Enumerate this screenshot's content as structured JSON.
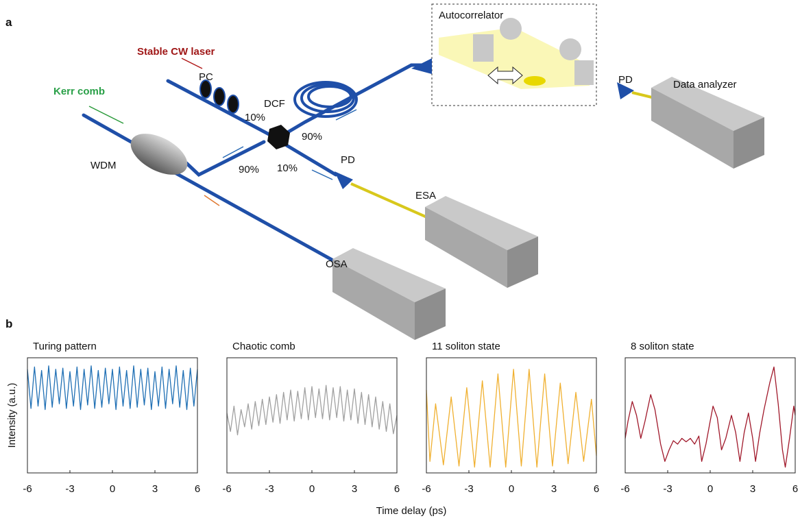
{
  "diagram": {
    "panel_a": "a",
    "panel_b": "b",
    "stable_cw_laser": "Stable CW laser",
    "pc": "PC",
    "kerr_comb": "Kerr comb",
    "dcf": "DCF",
    "coupler_left_top": "10%",
    "coupler_right_top": "90%",
    "wdm": "WDM",
    "coupler_left_bottom": "90%",
    "coupler_right_bottom": "10%",
    "pd_lower": "PD",
    "esa": "ESA",
    "osa": "OSA",
    "autocorrelator": "Autocorrelator",
    "pd_upper": "PD",
    "data_analyzer": "Data analyzer"
  },
  "figure": {
    "xlabel": "Time delay (ps)",
    "ylabel": "Intensity (a.u.)"
  },
  "chart_data": [
    {
      "type": "line",
      "title": "Turing pattern",
      "color": "#1f6fb4",
      "xlim": [
        -6,
        6
      ],
      "xticks": [
        -6,
        -3,
        0,
        3,
        6
      ],
      "ylim": [
        0,
        1
      ],
      "x": [
        -6,
        -5.75,
        -5.5,
        -5.25,
        -5,
        -4.75,
        -4.5,
        -4.25,
        -4,
        -3.75,
        -3.5,
        -3.25,
        -3,
        -2.75,
        -2.5,
        -2.25,
        -2,
        -1.75,
        -1.5,
        -1.25,
        -1,
        -0.75,
        -0.5,
        -0.25,
        0,
        0.25,
        0.5,
        0.75,
        1,
        1.25,
        1.5,
        1.75,
        2,
        2.25,
        2.5,
        2.75,
        3,
        3.25,
        3.5,
        3.75,
        4,
        4.25,
        4.5,
        4.75,
        5,
        5.25,
        5.5,
        5.75,
        6
      ],
      "values": [
        0.9,
        0.56,
        0.92,
        0.58,
        0.89,
        0.55,
        0.93,
        0.57,
        0.9,
        0.6,
        0.91,
        0.56,
        0.88,
        0.58,
        0.92,
        0.55,
        0.9,
        0.59,
        0.93,
        0.56,
        0.89,
        0.57,
        0.91,
        0.6,
        0.9,
        0.55,
        0.92,
        0.58,
        0.89,
        0.56,
        0.93,
        0.57,
        0.9,
        0.59,
        0.91,
        0.55,
        0.88,
        0.58,
        0.92,
        0.56,
        0.9,
        0.6,
        0.93,
        0.57,
        0.89,
        0.55,
        0.91,
        0.58,
        0.9
      ]
    },
    {
      "type": "line",
      "title": "Chaotic comb",
      "color": "#a0a0a0",
      "xlim": [
        -6,
        6
      ],
      "xticks": [
        -6,
        -3,
        0,
        3,
        6
      ],
      "ylim": [
        0,
        1
      ],
      "x": [
        -6,
        -5.75,
        -5.5,
        -5.25,
        -5,
        -4.75,
        -4.5,
        -4.25,
        -4,
        -3.75,
        -3.5,
        -3.25,
        -3,
        -2.75,
        -2.5,
        -2.25,
        -2,
        -1.75,
        -1.5,
        -1.25,
        -1,
        -0.75,
        -0.5,
        -0.25,
        0,
        0.25,
        0.5,
        0.75,
        1,
        1.25,
        1.5,
        1.75,
        2,
        2.25,
        2.5,
        2.75,
        3,
        3.25,
        3.5,
        3.75,
        4,
        4.25,
        4.5,
        4.75,
        5,
        5.25,
        5.5,
        5.75,
        6
      ],
      "values": [
        0.52,
        0.36,
        0.58,
        0.33,
        0.55,
        0.4,
        0.6,
        0.38,
        0.62,
        0.41,
        0.64,
        0.42,
        0.66,
        0.44,
        0.68,
        0.43,
        0.7,
        0.46,
        0.72,
        0.45,
        0.71,
        0.47,
        0.74,
        0.46,
        0.75,
        0.48,
        0.73,
        0.47,
        0.76,
        0.46,
        0.74,
        0.48,
        0.75,
        0.45,
        0.72,
        0.46,
        0.73,
        0.43,
        0.7,
        0.42,
        0.68,
        0.4,
        0.66,
        0.38,
        0.62,
        0.36,
        0.6,
        0.34,
        0.5
      ]
    },
    {
      "type": "line",
      "title": "11 soliton state",
      "color": "#f0b030",
      "xlim": [
        -6,
        6
      ],
      "xticks": [
        -6,
        -3,
        0,
        3,
        6
      ],
      "ylim": [
        0,
        1
      ],
      "x": [
        -6,
        -5.75,
        -5.35,
        -4.8,
        -4.25,
        -3.7,
        -3.15,
        -2.6,
        -2.05,
        -1.5,
        -0.95,
        -0.4,
        0.15,
        0.7,
        1.25,
        1.8,
        2.35,
        2.9,
        3.45,
        4.0,
        4.55,
        5.1,
        5.65,
        6
      ],
      "values": [
        0.72,
        0.1,
        0.6,
        0.07,
        0.66,
        0.06,
        0.74,
        0.05,
        0.8,
        0.05,
        0.86,
        0.05,
        0.9,
        0.06,
        0.9,
        0.05,
        0.86,
        0.06,
        0.78,
        0.08,
        0.7,
        0.1,
        0.64,
        0.15
      ]
    },
    {
      "type": "line",
      "title": "8 soliton state",
      "color": "#a0182a",
      "xlim": [
        -6,
        6
      ],
      "xticks": [
        -6,
        -3,
        0,
        3,
        6
      ],
      "ylim": [
        0,
        1
      ],
      "x": [
        -6,
        -5.8,
        -5.5,
        -5.2,
        -4.9,
        -4.6,
        -4.2,
        -3.9,
        -3.5,
        -3.2,
        -2.9,
        -2.6,
        -2.3,
        -2,
        -1.7,
        -1.4,
        -1.1,
        -0.8,
        -0.6,
        -0.3,
        0,
        0.2,
        0.5,
        0.8,
        1.1,
        1.5,
        1.8,
        2.1,
        2.4,
        2.7,
        3,
        3.2,
        3.5,
        3.8,
        4.2,
        4.5,
        4.8,
        5.1,
        5.3,
        5.6,
        5.9,
        6
      ],
      "values": [
        0.3,
        0.45,
        0.62,
        0.5,
        0.3,
        0.45,
        0.68,
        0.55,
        0.25,
        0.1,
        0.2,
        0.28,
        0.25,
        0.3,
        0.27,
        0.3,
        0.25,
        0.32,
        0.1,
        0.25,
        0.45,
        0.58,
        0.48,
        0.2,
        0.3,
        0.5,
        0.35,
        0.1,
        0.35,
        0.52,
        0.3,
        0.1,
        0.35,
        0.55,
        0.78,
        0.92,
        0.6,
        0.2,
        0.05,
        0.3,
        0.58,
        0.5
      ]
    }
  ]
}
